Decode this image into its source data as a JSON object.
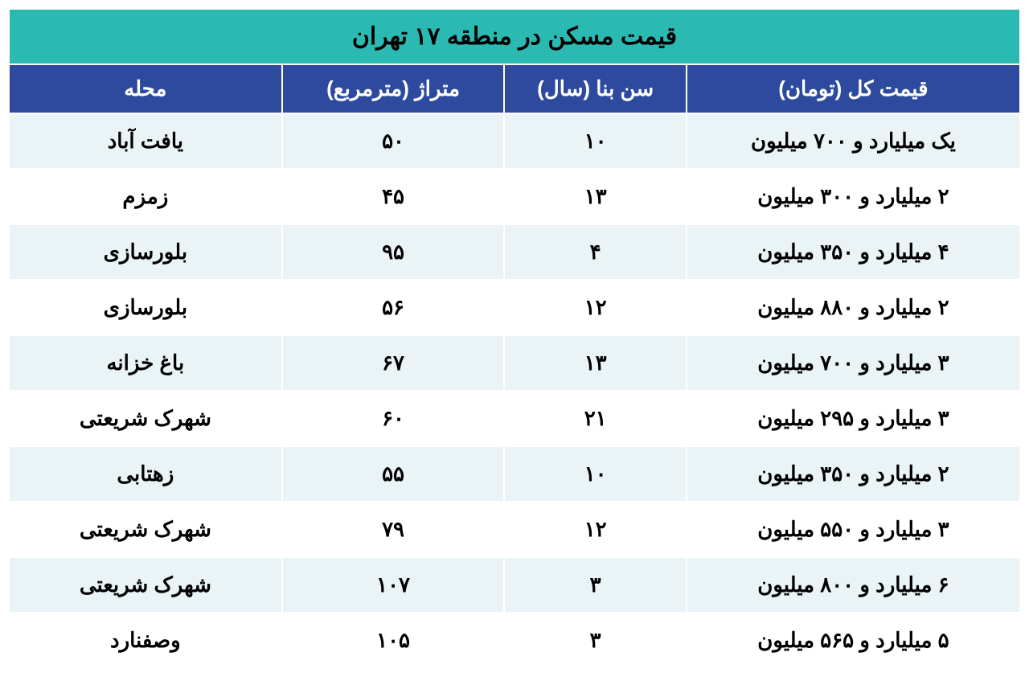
{
  "table": {
    "title": "قیمت مسکن در منطقه ۱۷ تهران",
    "columns": {
      "neighborhood": "محله",
      "area": "متراژ (مترمربع)",
      "age": "سن بنا (سال)",
      "price": "قیمت کل (تومان)"
    },
    "rows": [
      {
        "neighborhood": "یافت آباد",
        "area": "۵۰",
        "age": "۱۰",
        "price": "یک میلیارد و ۷۰۰ میلیون"
      },
      {
        "neighborhood": "زمزم",
        "area": "۴۵",
        "age": "۱۳",
        "price": "۲ میلیارد و ۳۰۰ میلیون"
      },
      {
        "neighborhood": "بلورسازی",
        "area": "۹۵",
        "age": "۴",
        "price": "۴ میلیارد و ۳۵۰ میلیون"
      },
      {
        "neighborhood": "بلورسازی",
        "area": "۵۶",
        "age": "۱۲",
        "price": "۲ میلیارد و ۸۸۰ میلیون"
      },
      {
        "neighborhood": "باغ خزانه",
        "area": "۶۷",
        "age": "۱۳",
        "price": "۳ میلیارد و ۷۰۰ میلیون"
      },
      {
        "neighborhood": "شهرک شریعتی",
        "area": "۶۰",
        "age": "۲۱",
        "price": "۳ میلیارد و ۲۹۵ میلیون"
      },
      {
        "neighborhood": "زهتابی",
        "area": "۵۵",
        "age": "۱۰",
        "price": "۲ میلیارد و ۳۵۰ میلیون"
      },
      {
        "neighborhood": "شهرک شریعتی",
        "area": "۷۹",
        "age": "۱۲",
        "price": "۳ میلیارد و ۵۵۰ میلیون"
      },
      {
        "neighborhood": "شهرک شریعتی",
        "area": "۱۰۷",
        "age": "۳",
        "price": "۶ میلیارد و ۸۰۰ میلیون"
      },
      {
        "neighborhood": "وصفنارد",
        "area": "۱۰۵",
        "age": "۳",
        "price": "۵ میلیارد و ۵۶۵ میلیون"
      }
    ],
    "colors": {
      "title_bg": "#2bbab2",
      "header_bg": "#2d4a9e",
      "header_fg": "#ffffff",
      "row_odd_bg": "#eaf3f6",
      "row_even_bg": "#ffffff",
      "border": "#ffffff",
      "text": "#000000"
    }
  }
}
